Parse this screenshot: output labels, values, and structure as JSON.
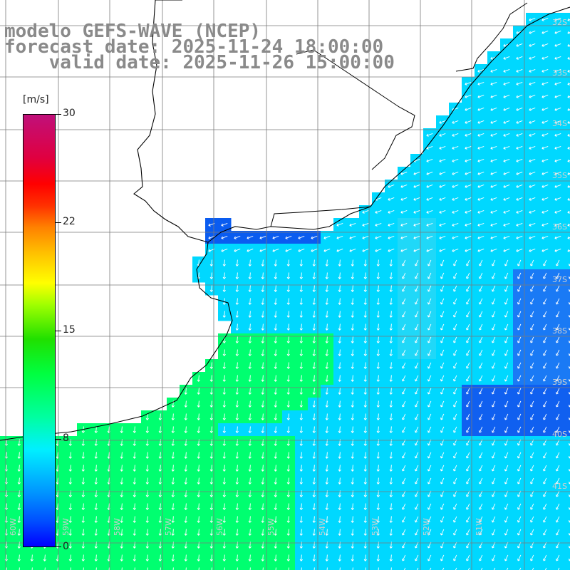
{
  "title": {
    "line1": "modelo GEFS-WAVE (NCEP)",
    "line2": "forecast date: 2025-11-24 18:00:00",
    "line3": "    valid date: 2025-11-26 15:00:00"
  },
  "colorbar": {
    "unit": "[m/s]",
    "ticks": [
      {
        "label": "30",
        "value": 30
      },
      {
        "label": "22",
        "value": 22
      },
      {
        "label": "15",
        "value": 15
      },
      {
        "label": "8",
        "value": 8
      },
      {
        "label": "0",
        "value": 0
      }
    ]
  },
  "map": {
    "lat_labels": [
      "32S",
      "33S",
      "34S",
      "35S",
      "36S",
      "37S",
      "38S",
      "39S",
      "40S",
      "41S"
    ],
    "lon_labels": [
      "60W",
      "59W",
      "58W",
      "57W",
      "56W",
      "55W",
      "54W",
      "53W",
      "52W",
      "51W"
    ],
    "colors": {
      "ocean_low": "#0a5cf0",
      "ocean_mid": "#00d8ff",
      "ocean_high": "#00ff70",
      "land": "#ffffff",
      "grid": "#7a7a7a",
      "coast": "#000000",
      "arrow": "#ffffff"
    }
  }
}
